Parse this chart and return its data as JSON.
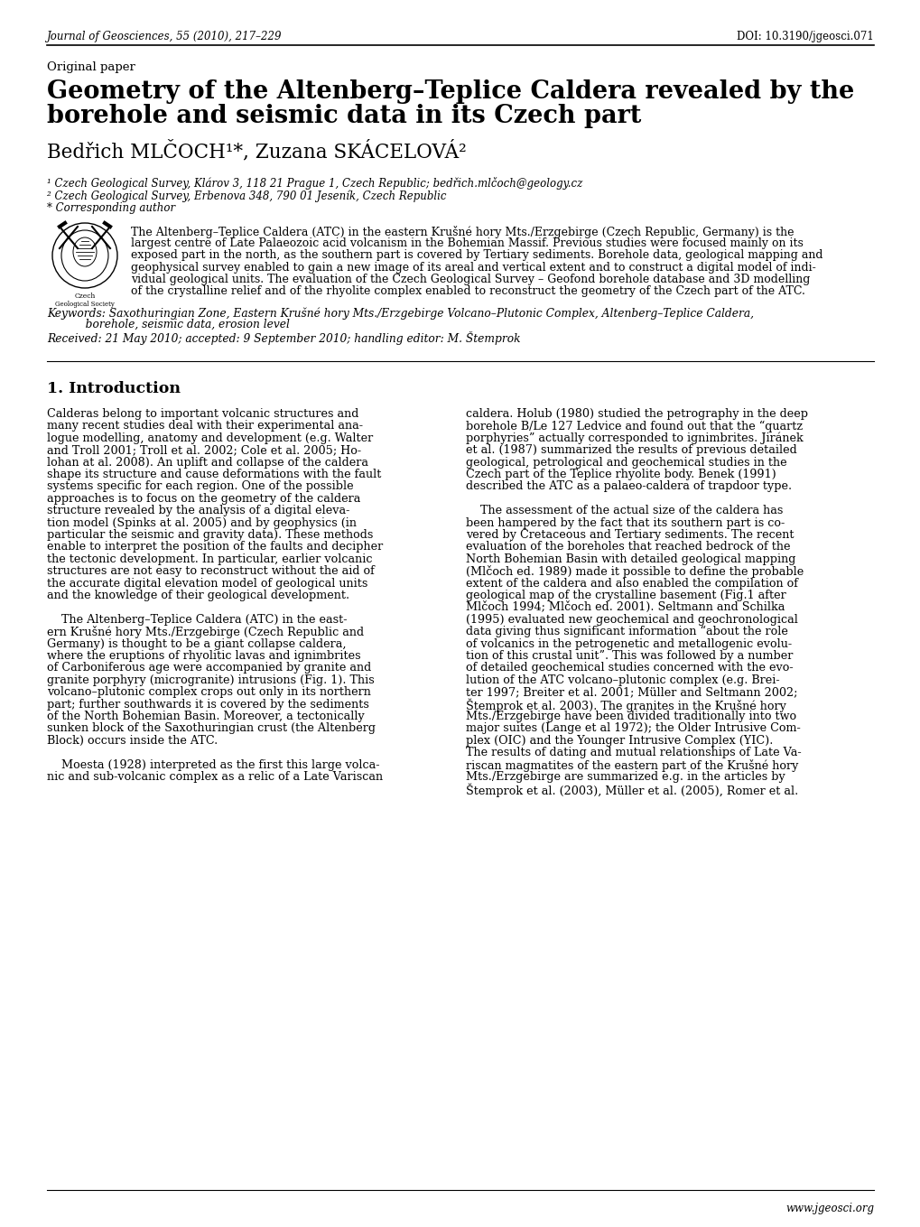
{
  "journal_line": "Journal of Geosciences, 55 (2010), 217–229",
  "doi_line": "DOI: 10.3190/jgeosci.071",
  "paper_type": "Original paper",
  "title_line1": "Geometry of the Altenberg–Teplice Caldera revealed by the",
  "title_line2": "borehole and seismic data in its Czech part",
  "authors": "Bedřich MLČOCH¹*, Zuzana SKÁCELOVÁ²",
  "affil1": "¹ Czech Geological Survey, Klárov 3, 118 21 Prague 1, Czech Republic; bedřich.mlčoch@geology.cz",
  "affil2": "² Czech Geological Survey, Erbenova 348, 790 01 Jeseník, Czech Republic",
  "affil3": "* Corresponding author",
  "abstract_lines": [
    "The Altenberg–Teplice Caldera (ATC) in the eastern Krušné hory Mts./Erzgebirge (Czech Republic, Germany) is the",
    "largest centre of Late Palaeozoic acid volcanism in the Bohemian Massif. Previous studies were focused mainly on its",
    "exposed part in the north, as the southern part is covered by Tertiary sediments. Borehole data, geological mapping and",
    "geophysical survey enabled to gain a new image of its areal and vertical extent and to construct a digital model of indi-",
    "vidual geological units. The evaluation of the Czech Geological Survey – Geofond borehole database and 3D modelling",
    "of the crystalline relief and of the rhyolite complex enabled to reconstruct the geometry of the Czech part of the ATC."
  ],
  "keywords_line1": "Keywords: Saxothuringian Zone, Eastern Krušné hory Mts./Erzgebirge Volcano–Plutonic Complex, Altenberg–Teplice Caldera,",
  "keywords_line2": "           borehole, seismic data, erosion level",
  "received": "Received: 21 May 2010; accepted: 9 September 2010; handling editor: M. Štemprok",
  "section_title": "1. Introduction",
  "col1_lines": [
    "Calderas belong to important volcanic structures and",
    "many recent studies deal with their experimental ana-",
    "logue modelling, anatomy and development (e.g. Walter",
    "and Troll 2001; Troll et al. 2002; Cole et al. 2005; Ho-",
    "lohan at al. 2008). An uplift and collapse of the caldera",
    "shape its structure and cause deformations with the fault",
    "systems specific for each region. One of the possible",
    "approaches is to focus on the geometry of the caldera",
    "structure revealed by the analysis of a digital eleva-",
    "tion model (Spinks at al. 2005) and by geophysics (in",
    "particular the seismic and gravity data). These methods",
    "enable to interpret the position of the faults and decipher",
    "the tectonic development. In particular, earlier volcanic",
    "structures are not easy to reconstruct without the aid of",
    "the accurate digital elevation model of geological units",
    "and the knowledge of their geological development.",
    "",
    "    The Altenberg–Teplice Caldera (ATC) in the east-",
    "ern Krušné hory Mts./Erzgebirge (Czech Republic and",
    "Germany) is thought to be a giant collapse caldera,",
    "where the eruptions of rhyolitic lavas and ignimbrites",
    "of Carboniferous age were accompanied by granite and",
    "granite porphyry (microgranite) intrusions (Fig. 1). This",
    "volcano–plutonic complex crops out only in its northern",
    "part; further southwards it is covered by the sediments",
    "of the North Bohemian Basin. Moreover, a tectonically",
    "sunken block of the Saxothuringian crust (the Altenberg",
    "Block) occurs inside the ATC.",
    "",
    "    Moesta (1928) interpreted as the first this large volca-",
    "nic and sub-volcanic complex as a relic of a Late Variscan"
  ],
  "col2_lines": [
    "caldera. Holub (1980) studied the petrography in the deep",
    "borehole B/Le 127 Ledvice and found out that the “quartz",
    "porphyries” actually corresponded to ignimbrites. Jiránek",
    "et al. (1987) summarized the results of previous detailed",
    "geological, petrological and geochemical studies in the",
    "Czech part of the Teplice rhyolite body. Benek (1991)",
    "described the ATC as a palaeo-caldera of trapdoor type.",
    "",
    "    The assessment of the actual size of the caldera has",
    "been hampered by the fact that its southern part is co-",
    "vered by Cretaceous and Tertiary sediments. The recent",
    "evaluation of the boreholes that reached bedrock of the",
    "North Bohemian Basin with detailed geological mapping",
    "(Mlčoch ed. 1989) made it possible to define the probable",
    "extent of the caldera and also enabled the compilation of",
    "geological map of the crystalline basement (Fig.1 after",
    "Mlčoch 1994; Mlčoch ed. 2001). Seltmann and Schilka",
    "(1995) evaluated new geochemical and geochronological",
    "data giving thus significant information “about the role",
    "of volcanics in the petrogenetic and metallogenic evolu-",
    "tion of this crustal unit”. This was followed by a number",
    "of detailed geochemical studies concerned with the evo-",
    "lution of the ATC volcano–plutonic complex (e.g. Brei-",
    "ter 1997; Breiter et al. 2001; Müller and Seltmann 2002;",
    "Štemprok et al. 2003). The granites in the Krušné hory",
    "Mts./Erzgebirge have been divided traditionally into two",
    "major suites (Lange et al 1972); the Older Intrusive Com-",
    "plex (OIC) and the Younger Intrusive Complex (YIC).",
    "The results of dating and mutual relationships of Late Va-",
    "riscan magmatites of the eastern part of the Krušné hory",
    "Mts./Erzgebirge are summarized e.g. in the articles by",
    "Štemprok et al. (2003), Müller et al. (2005), Romer et al."
  ],
  "website": "www.jgeosci.org",
  "bg_color": "#ffffff",
  "text_color": "#000000"
}
